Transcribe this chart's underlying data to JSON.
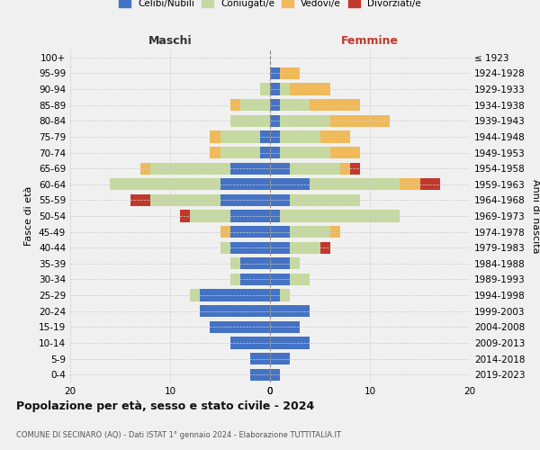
{
  "age_groups": [
    "100+",
    "95-99",
    "90-94",
    "85-89",
    "80-84",
    "75-79",
    "70-74",
    "65-69",
    "60-64",
    "55-59",
    "50-54",
    "45-49",
    "40-44",
    "35-39",
    "30-34",
    "25-29",
    "20-24",
    "15-19",
    "10-14",
    "5-9",
    "0-4"
  ],
  "birth_years": [
    "≤ 1923",
    "1924-1928",
    "1929-1933",
    "1934-1938",
    "1939-1943",
    "1944-1948",
    "1949-1953",
    "1954-1958",
    "1959-1963",
    "1964-1968",
    "1969-1973",
    "1974-1978",
    "1979-1983",
    "1984-1988",
    "1989-1993",
    "1994-1998",
    "1999-2003",
    "2004-2008",
    "2009-2013",
    "2014-2018",
    "2019-2023"
  ],
  "colors": {
    "celibi": "#4472c4",
    "coniugati": "#c5d9a0",
    "vedovi": "#f0b95a",
    "divorziati": "#c0392b"
  },
  "maschi": {
    "celibi": [
      0,
      0,
      0,
      0,
      0,
      1,
      1,
      4,
      5,
      5,
      4,
      4,
      4,
      3,
      3,
      7,
      7,
      6,
      4,
      2,
      2
    ],
    "coniugati": [
      0,
      0,
      1,
      3,
      4,
      4,
      4,
      8,
      11,
      7,
      4,
      0,
      1,
      1,
      1,
      1,
      0,
      0,
      0,
      0,
      0
    ],
    "vedovi": [
      0,
      0,
      0,
      1,
      0,
      1,
      1,
      1,
      0,
      0,
      0,
      1,
      0,
      0,
      0,
      0,
      0,
      0,
      0,
      0,
      0
    ],
    "divorziati": [
      0,
      0,
      0,
      0,
      0,
      0,
      0,
      0,
      0,
      2,
      1,
      0,
      0,
      0,
      0,
      0,
      0,
      0,
      0,
      0,
      0
    ]
  },
  "femmine": {
    "celibi": [
      0,
      1,
      1,
      1,
      1,
      1,
      1,
      2,
      4,
      2,
      1,
      2,
      2,
      2,
      2,
      1,
      4,
      3,
      4,
      2,
      1
    ],
    "coniugati": [
      0,
      0,
      1,
      3,
      5,
      4,
      5,
      5,
      9,
      7,
      12,
      4,
      3,
      1,
      2,
      1,
      0,
      0,
      0,
      0,
      0
    ],
    "vedovi": [
      0,
      2,
      4,
      5,
      6,
      3,
      3,
      1,
      2,
      0,
      0,
      1,
      0,
      0,
      0,
      0,
      0,
      0,
      0,
      0,
      0
    ],
    "divorziati": [
      0,
      0,
      0,
      0,
      0,
      0,
      0,
      1,
      2,
      0,
      0,
      0,
      1,
      0,
      0,
      0,
      0,
      0,
      0,
      0,
      0
    ]
  },
  "title": "Popolazione per età, sesso e stato civile - 2024",
  "subtitle": "COMUNE DI SECINARO (AQ) - Dati ISTAT 1° gennaio 2024 - Elaborazione TUTTITALIA.IT",
  "ylabel_left": "Fasce di età",
  "ylabel_right": "Anni di nascita",
  "xlabel_maschi": "Maschi",
  "xlabel_femmine": "Femmine",
  "xlim": 20,
  "legend_labels": [
    "Celibi/Nubili",
    "Coniugati/e",
    "Vedovi/e",
    "Divorziati/e"
  ],
  "bg_color": "#f0f0f0",
  "grid_color": "#cccccc"
}
